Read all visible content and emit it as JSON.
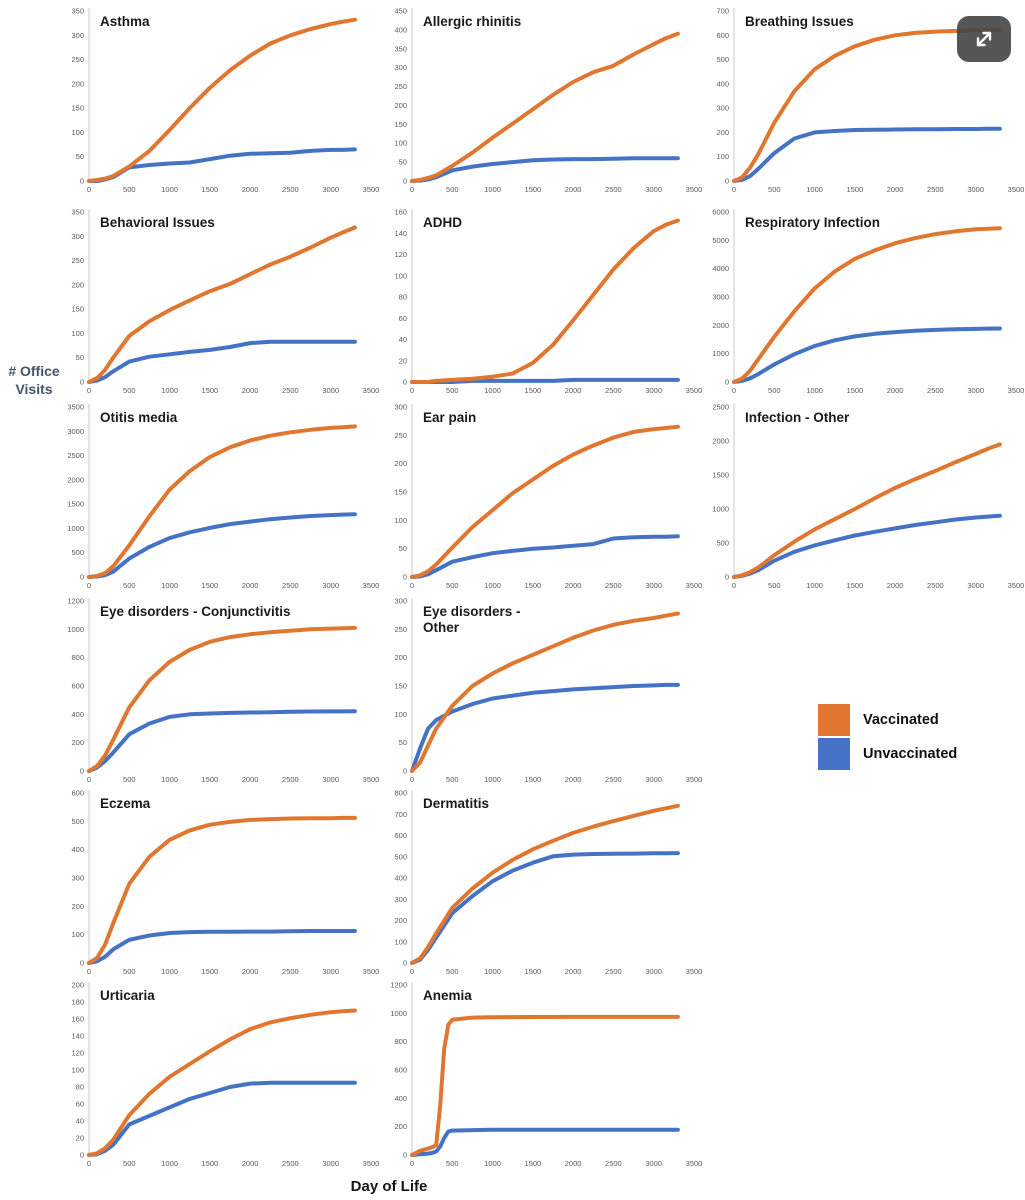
{
  "labels": {
    "y_axis": "# Office\nVisits",
    "x_axis": "Day of Life"
  },
  "legend": {
    "items": [
      {
        "label": "Vaccinated",
        "color": "#E0762F"
      },
      {
        "label": "Unvaccinated",
        "color": "#4472C4"
      }
    ]
  },
  "icons": {
    "expand_button": "expand-arrows-icon"
  },
  "style": {
    "axis_color": "#c9c9c9",
    "tick_color": "#595959",
    "title_color": "#1a1a1a",
    "series_colors": {
      "Vaccinated": "#E0762F",
      "Unvaccinated": "#4472C4"
    }
  },
  "x_axis_ticks": [
    0,
    500,
    1000,
    1500,
    2000,
    2500,
    3000,
    3500
  ],
  "chart_data": [
    {
      "type": "line",
      "title": "Asthma",
      "ylim": [
        0,
        350
      ],
      "ytick_step": 50,
      "x": [
        0,
        100,
        200,
        300,
        500,
        750,
        1000,
        1250,
        1500,
        1750,
        2000,
        2250,
        2500,
        2750,
        3000,
        3150,
        3300
      ],
      "series": [
        {
          "name": "Vaccinated",
          "values": [
            0,
            2,
            5,
            10,
            30,
            62,
            105,
            150,
            192,
            228,
            258,
            283,
            300,
            313,
            323,
            328,
            332
          ]
        },
        {
          "name": "Unvaccinated",
          "values": [
            0,
            0,
            3,
            8,
            28,
            33,
            36,
            38,
            45,
            52,
            56,
            57,
            58,
            62,
            64,
            64,
            65
          ]
        }
      ]
    },
    {
      "type": "line",
      "title": "Allergic rhinitis",
      "ylim": [
        0,
        450
      ],
      "ytick_step": 50,
      "x": [
        0,
        100,
        200,
        300,
        500,
        750,
        1000,
        1250,
        1500,
        1750,
        2000,
        2250,
        2500,
        2750,
        3000,
        3150,
        3300
      ],
      "series": [
        {
          "name": "Vaccinated",
          "values": [
            0,
            3,
            8,
            15,
            40,
            75,
            115,
            152,
            190,
            228,
            262,
            288,
            305,
            335,
            362,
            378,
            390
          ]
        },
        {
          "name": "Unvaccinated",
          "values": [
            0,
            1,
            4,
            10,
            28,
            38,
            45,
            50,
            55,
            57,
            58,
            58,
            59,
            60,
            60,
            60,
            60
          ]
        }
      ]
    },
    {
      "type": "line",
      "title": "Breathing Issues",
      "ylim": [
        0,
        700
      ],
      "ytick_step": 100,
      "x": [
        0,
        100,
        200,
        300,
        500,
        750,
        1000,
        1250,
        1500,
        1750,
        2000,
        2250,
        2500,
        2750,
        3000,
        3150,
        3300
      ],
      "series": [
        {
          "name": "Vaccinated",
          "values": [
            0,
            15,
            55,
            110,
            240,
            370,
            460,
            515,
            555,
            582,
            600,
            610,
            615,
            618,
            620,
            621,
            622
          ]
        },
        {
          "name": "Unvaccinated",
          "values": [
            0,
            5,
            20,
            50,
            115,
            175,
            200,
            206,
            210,
            211,
            212,
            213,
            213,
            214,
            214,
            215,
            215
          ]
        }
      ]
    },
    {
      "type": "line",
      "title": "Behavioral Issues",
      "ylim": [
        0,
        350
      ],
      "ytick_step": 50,
      "x": [
        0,
        100,
        200,
        300,
        500,
        750,
        1000,
        1250,
        1500,
        1750,
        2000,
        2250,
        2500,
        2750,
        3000,
        3150,
        3300
      ],
      "series": [
        {
          "name": "Vaccinated",
          "values": [
            0,
            8,
            25,
            50,
            95,
            125,
            148,
            168,
            187,
            202,
            222,
            242,
            258,
            277,
            297,
            308,
            318
          ]
        },
        {
          "name": "Unvaccinated",
          "values": [
            0,
            3,
            10,
            22,
            42,
            52,
            57,
            62,
            66,
            72,
            80,
            83,
            83,
            83,
            83,
            83,
            83
          ]
        }
      ]
    },
    {
      "type": "line",
      "title": "ADHD",
      "ylim": [
        0,
        160
      ],
      "ytick_step": 20,
      "x": [
        0,
        100,
        200,
        300,
        500,
        750,
        1000,
        1250,
        1500,
        1750,
        2000,
        2250,
        2500,
        2750,
        3000,
        3150,
        3300
      ],
      "series": [
        {
          "name": "Vaccinated",
          "values": [
            0,
            0,
            0,
            1,
            2,
            3,
            5,
            8,
            18,
            35,
            58,
            82,
            106,
            126,
            142,
            148,
            152
          ]
        },
        {
          "name": "Unvaccinated",
          "values": [
            0,
            0,
            0,
            0,
            0,
            1,
            1,
            1,
            1,
            1,
            2,
            2,
            2,
            2,
            2,
            2,
            2
          ]
        }
      ]
    },
    {
      "type": "line",
      "title": "Respiratory Infection",
      "ylim": [
        0,
        6000
      ],
      "ytick_step": 1000,
      "x": [
        0,
        100,
        200,
        300,
        500,
        750,
        1000,
        1250,
        1500,
        1750,
        2000,
        2250,
        2500,
        2750,
        3000,
        3150,
        3300
      ],
      "series": [
        {
          "name": "Vaccinated",
          "values": [
            0,
            120,
            400,
            800,
            1600,
            2500,
            3300,
            3900,
            4350,
            4650,
            4900,
            5080,
            5220,
            5320,
            5390,
            5410,
            5430
          ]
        },
        {
          "name": "Unvaccinated",
          "values": [
            0,
            40,
            130,
            280,
            620,
            980,
            1270,
            1470,
            1610,
            1700,
            1760,
            1810,
            1840,
            1860,
            1875,
            1885,
            1890
          ]
        }
      ]
    },
    {
      "type": "line",
      "title": "Otitis media",
      "ylim": [
        0,
        3500
      ],
      "ytick_step": 500,
      "x": [
        0,
        100,
        200,
        300,
        500,
        750,
        1000,
        1250,
        1500,
        1750,
        2000,
        2250,
        2500,
        2750,
        3000,
        3150,
        3300
      ],
      "series": [
        {
          "name": "Vaccinated",
          "values": [
            0,
            20,
            80,
            220,
            650,
            1250,
            1800,
            2180,
            2470,
            2670,
            2810,
            2910,
            2980,
            3030,
            3070,
            3085,
            3100
          ]
        },
        {
          "name": "Unvaccinated",
          "values": [
            0,
            10,
            40,
            110,
            380,
            620,
            800,
            920,
            1010,
            1090,
            1140,
            1190,
            1225,
            1255,
            1275,
            1285,
            1290
          ]
        }
      ]
    },
    {
      "type": "line",
      "title": "Ear pain",
      "ylim": [
        0,
        300
      ],
      "ytick_step": 50,
      "x": [
        0,
        100,
        200,
        300,
        500,
        750,
        1000,
        1250,
        1500,
        1750,
        2000,
        2250,
        2500,
        2750,
        3000,
        3150,
        3300
      ],
      "series": [
        {
          "name": "Vaccinated",
          "values": [
            0,
            3,
            10,
            22,
            52,
            88,
            118,
            148,
            172,
            196,
            216,
            232,
            246,
            256,
            261,
            263,
            265
          ]
        },
        {
          "name": "Unvaccinated",
          "values": [
            0,
            1,
            5,
            12,
            27,
            35,
            42,
            46,
            50,
            52,
            55,
            58,
            68,
            70,
            71,
            71,
            72
          ]
        }
      ]
    },
    {
      "type": "line",
      "title": "Infection - Other",
      "ylim": [
        0,
        2500
      ],
      "ytick_step": 500,
      "x": [
        0,
        100,
        200,
        300,
        500,
        750,
        1000,
        1250,
        1500,
        1750,
        2000,
        2250,
        2500,
        2750,
        3000,
        3150,
        3300
      ],
      "series": [
        {
          "name": "Vaccinated",
          "values": [
            0,
            25,
            70,
            140,
            320,
            520,
            700,
            850,
            1000,
            1160,
            1310,
            1440,
            1560,
            1690,
            1810,
            1885,
            1950
          ]
        },
        {
          "name": "Unvaccinated",
          "values": [
            0,
            18,
            50,
            100,
            240,
            370,
            465,
            540,
            610,
            665,
            715,
            765,
            805,
            845,
            875,
            888,
            900
          ]
        }
      ]
    },
    {
      "type": "line",
      "title": "Eye disorders - Conjunctivitis",
      "ylim": [
        0,
        1200
      ],
      "ytick_step": 200,
      "x": [
        0,
        100,
        200,
        300,
        500,
        750,
        1000,
        1250,
        1500,
        1750,
        2000,
        2250,
        2500,
        2750,
        3000,
        3150,
        3300
      ],
      "series": [
        {
          "name": "Vaccinated",
          "values": [
            0,
            35,
            110,
            220,
            450,
            640,
            770,
            855,
            912,
            945,
            965,
            980,
            990,
            1000,
            1005,
            1008,
            1010
          ]
        },
        {
          "name": "Unvaccinated",
          "values": [
            0,
            25,
            70,
            130,
            260,
            335,
            382,
            400,
            406,
            410,
            413,
            415,
            418,
            420,
            421,
            421,
            422
          ]
        }
      ]
    },
    {
      "type": "line",
      "title": "Eye disorders -\nOther",
      "ylim": [
        0,
        300
      ],
      "ytick_step": 50,
      "x": [
        0,
        100,
        200,
        300,
        500,
        750,
        1000,
        1250,
        1500,
        1750,
        2000,
        2250,
        2500,
        2750,
        3000,
        3150,
        3300
      ],
      "series": [
        {
          "name": "Vaccinated",
          "values": [
            0,
            15,
            45,
            75,
            115,
            150,
            172,
            190,
            205,
            220,
            235,
            248,
            258,
            265,
            270,
            274,
            278
          ]
        },
        {
          "name": "Unvaccinated",
          "values": [
            0,
            40,
            75,
            90,
            105,
            118,
            128,
            133,
            138,
            141,
            144,
            146,
            148,
            150,
            151,
            152,
            152
          ]
        }
      ]
    },
    {
      "type": "line",
      "title": "Eczema",
      "ylim": [
        0,
        600
      ],
      "ytick_step": 100,
      "x": [
        0,
        100,
        200,
        300,
        500,
        750,
        1000,
        1250,
        1500,
        1750,
        2000,
        2250,
        2500,
        2750,
        3000,
        3150,
        3300
      ],
      "series": [
        {
          "name": "Vaccinated",
          "values": [
            0,
            18,
            65,
            140,
            280,
            375,
            435,
            468,
            488,
            498,
            505,
            508,
            510,
            511,
            511,
            512,
            512
          ]
        },
        {
          "name": "Unvaccinated",
          "values": [
            0,
            6,
            22,
            48,
            82,
            97,
            106,
            109,
            110,
            110,
            111,
            111,
            112,
            113,
            113,
            113,
            113
          ]
        }
      ]
    },
    {
      "type": "line",
      "title": "Dermatitis",
      "ylim": [
        0,
        800
      ],
      "ytick_step": 100,
      "x": [
        0,
        100,
        200,
        300,
        500,
        750,
        1000,
        1250,
        1500,
        1750,
        2000,
        2250,
        2500,
        2750,
        3000,
        3150,
        3300
      ],
      "series": [
        {
          "name": "Vaccinated",
          "values": [
            0,
            22,
            75,
            140,
            260,
            350,
            425,
            485,
            535,
            575,
            612,
            642,
            668,
            692,
            716,
            728,
            740
          ]
        },
        {
          "name": "Unvaccinated",
          "values": [
            0,
            16,
            62,
            120,
            235,
            315,
            385,
            435,
            472,
            502,
            510,
            513,
            514,
            515,
            516,
            516,
            517
          ]
        }
      ]
    },
    {
      "type": "line",
      "title": "Urticaria",
      "ylim": [
        0,
        200
      ],
      "ytick_step": 20,
      "x": [
        0,
        100,
        200,
        300,
        500,
        750,
        1000,
        1250,
        1500,
        1750,
        2000,
        2250,
        2500,
        2750,
        3000,
        3150,
        3300
      ],
      "series": [
        {
          "name": "Vaccinated",
          "values": [
            0,
            2,
            8,
            18,
            47,
            72,
            92,
            107,
            122,
            136,
            148,
            156,
            161,
            165,
            168,
            169,
            170
          ]
        },
        {
          "name": "Unvaccinated",
          "values": [
            0,
            1,
            5,
            12,
            36,
            46,
            56,
            66,
            73,
            80,
            84,
            85,
            85,
            85,
            85,
            85,
            85
          ]
        }
      ]
    },
    {
      "type": "line",
      "title": "Anemia",
      "ylim": [
        0,
        1200
      ],
      "ytick_step": 200,
      "x": [
        0,
        100,
        200,
        250,
        300,
        350,
        400,
        450,
        500,
        750,
        1000,
        1500,
        2000,
        2500,
        3000,
        3300
      ],
      "series": [
        {
          "name": "Vaccinated",
          "values": [
            0,
            30,
            45,
            55,
            70,
            350,
            750,
            920,
            955,
            970,
            973,
            974,
            975,
            975,
            975,
            975
          ]
        },
        {
          "name": "Unvaccinated",
          "values": [
            0,
            5,
            10,
            15,
            25,
            60,
            120,
            165,
            172,
            176,
            178,
            178,
            178,
            178,
            178,
            178
          ]
        }
      ]
    }
  ]
}
